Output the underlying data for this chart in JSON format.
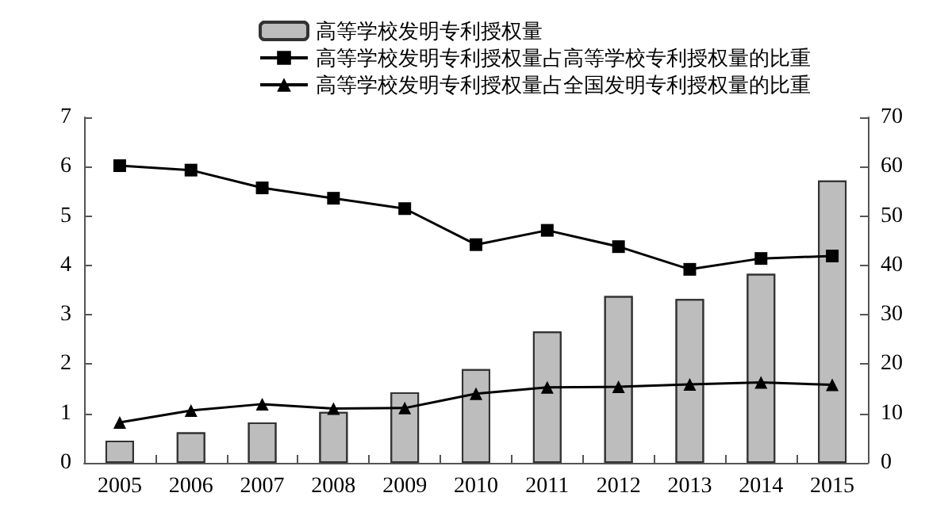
{
  "chart_data": {
    "type": "bar",
    "categories": [
      "2005",
      "2006",
      "2007",
      "2008",
      "2009",
      "2010",
      "2011",
      "2012",
      "2013",
      "2014",
      "2015"
    ],
    "series": [
      {
        "name": "高等学校发明专利授权量",
        "color": "#bdbdbd",
        "values": [
          0.45,
          0.62,
          0.82,
          1.03,
          1.43,
          1.9,
          2.66,
          3.38,
          3.32,
          3.83,
          5.72
        ]
      },
      {
        "name": "高等学校发明专利授权量占高等学校专利授权量的比重",
        "type": "line",
        "axis": "y2",
        "marker": "square",
        "color": "#000000",
        "values": [
          60.2,
          59.3,
          55.7,
          53.6,
          51.5,
          44.2,
          47.1,
          43.8,
          39.2,
          41.4,
          41.9
        ]
      },
      {
        "name": "高等学校发明专利授权量占全国发明专利授权量的比重",
        "type": "line",
        "axis": "y2",
        "marker": "triangle",
        "color": "#000000",
        "values": [
          8.2,
          10.6,
          11.9,
          11.0,
          11.1,
          14.0,
          15.3,
          15.4,
          15.9,
          16.3,
          15.8
        ]
      }
    ],
    "ylim": [
      0,
      7
    ],
    "yticks": [
      0,
      1,
      2,
      3,
      4,
      5,
      6,
      7
    ],
    "y2lim": [
      0,
      70
    ],
    "y2ticks": [
      0,
      10,
      20,
      30,
      40,
      50,
      60,
      70
    ],
    "grid": false,
    "legend": "top",
    "line_style": "solid"
  }
}
